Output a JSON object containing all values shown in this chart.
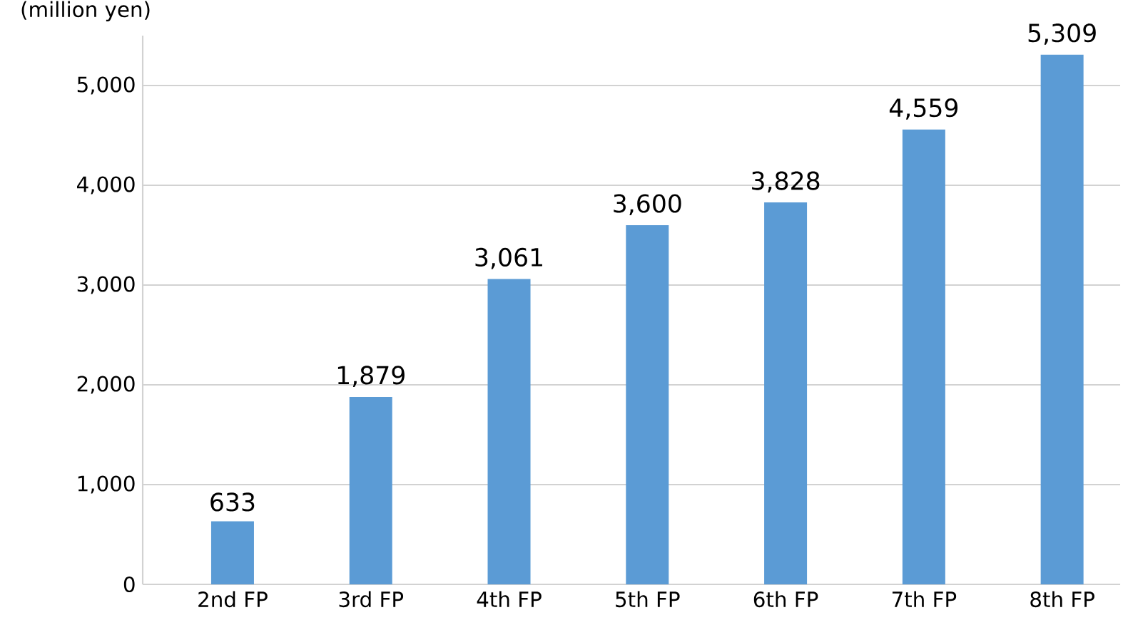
{
  "chart_data": {
    "type": "bar",
    "ylabel": "(million yen)",
    "categories": [
      "2nd FP",
      "3rd FP",
      "4th FP",
      "5th FP",
      "6th FP",
      "7th FP",
      "8th FP"
    ],
    "values": [
      633,
      1879,
      3061,
      3600,
      3828,
      4559,
      5309
    ],
    "color": "#5b9bd5",
    "ylim": [
      0,
      5500
    ],
    "yticks": [
      {
        "value": 0,
        "label": "0"
      },
      {
        "value": 1000,
        "label": "1,000"
      },
      {
        "value": 2000,
        "label": "2,000"
      },
      {
        "value": 3000,
        "label": "3,000"
      },
      {
        "value": 4000,
        "label": "4,000"
      },
      {
        "value": 5000,
        "label": "5,000"
      }
    ],
    "value_labels": [
      "633",
      "1,879",
      "3,061",
      "3,600",
      "3,828",
      "4,559",
      "5,309"
    ],
    "grid": "y"
  }
}
